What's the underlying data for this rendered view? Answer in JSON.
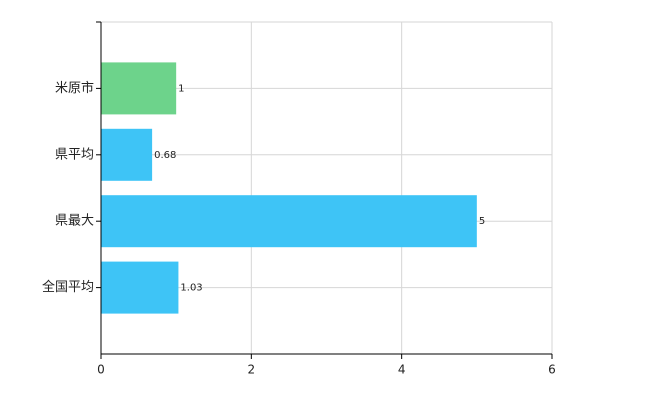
{
  "chart_data": {
    "type": "bar",
    "orientation": "horizontal",
    "categories": [
      "米原市",
      "県平均",
      "県最大",
      "全国平均"
    ],
    "values": [
      1,
      0.68,
      5,
      1.03
    ],
    "colors": [
      "#6dd38b",
      "#3ec4f6",
      "#3ec4f6",
      "#3ec4f6"
    ],
    "xlim": [
      0,
      6
    ],
    "xticks": [
      0,
      2,
      4,
      6
    ],
    "grid": true
  }
}
